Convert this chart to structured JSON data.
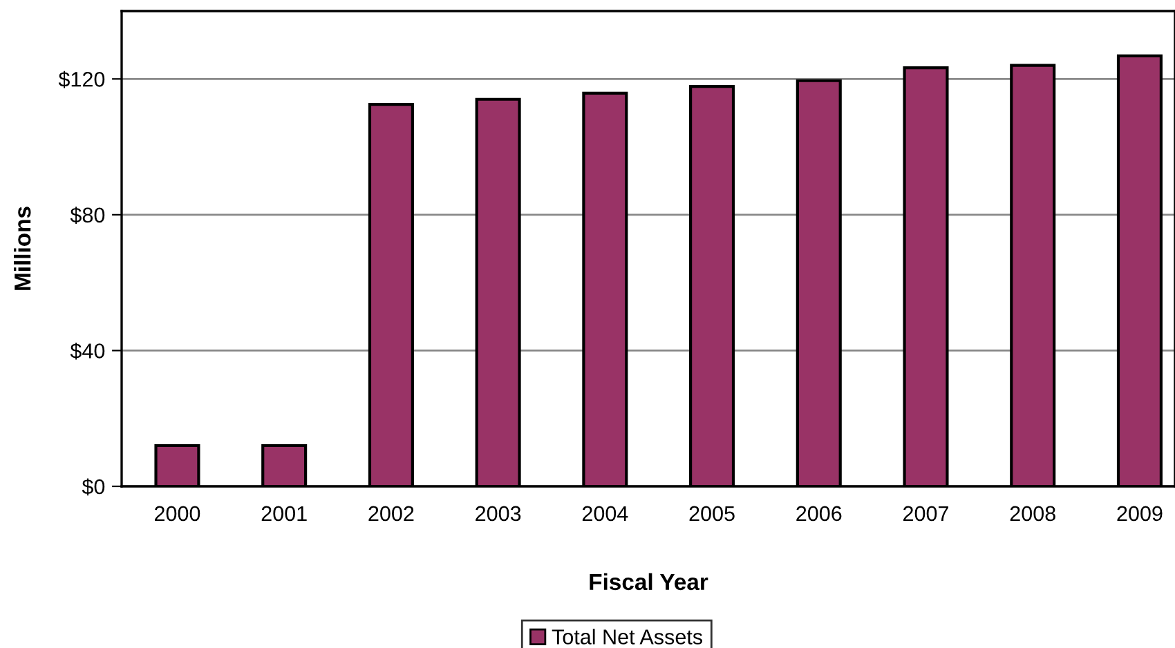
{
  "chart_data": {
    "type": "bar",
    "xlabel": "Fiscal Year",
    "ylabel": "Millions",
    "categories": [
      "2000",
      "2001",
      "2002",
      "2003",
      "2004",
      "2005",
      "2006",
      "2007",
      "2008",
      "2009"
    ],
    "series": [
      {
        "name": "Total Net Assets",
        "color": "#993366",
        "values": [
          12,
          12,
          112.5,
          114,
          115.8,
          117.8,
          119.5,
          123.3,
          124,
          126.8
        ]
      }
    ],
    "ylim": [
      0,
      140
    ],
    "yticks": [
      {
        "value": 0,
        "label": "$0"
      },
      {
        "value": 40,
        "label": "$40"
      },
      {
        "value": 80,
        "label": "$80"
      },
      {
        "value": 120,
        "label": "$120"
      }
    ],
    "grid": "y",
    "legend": "bottom"
  }
}
